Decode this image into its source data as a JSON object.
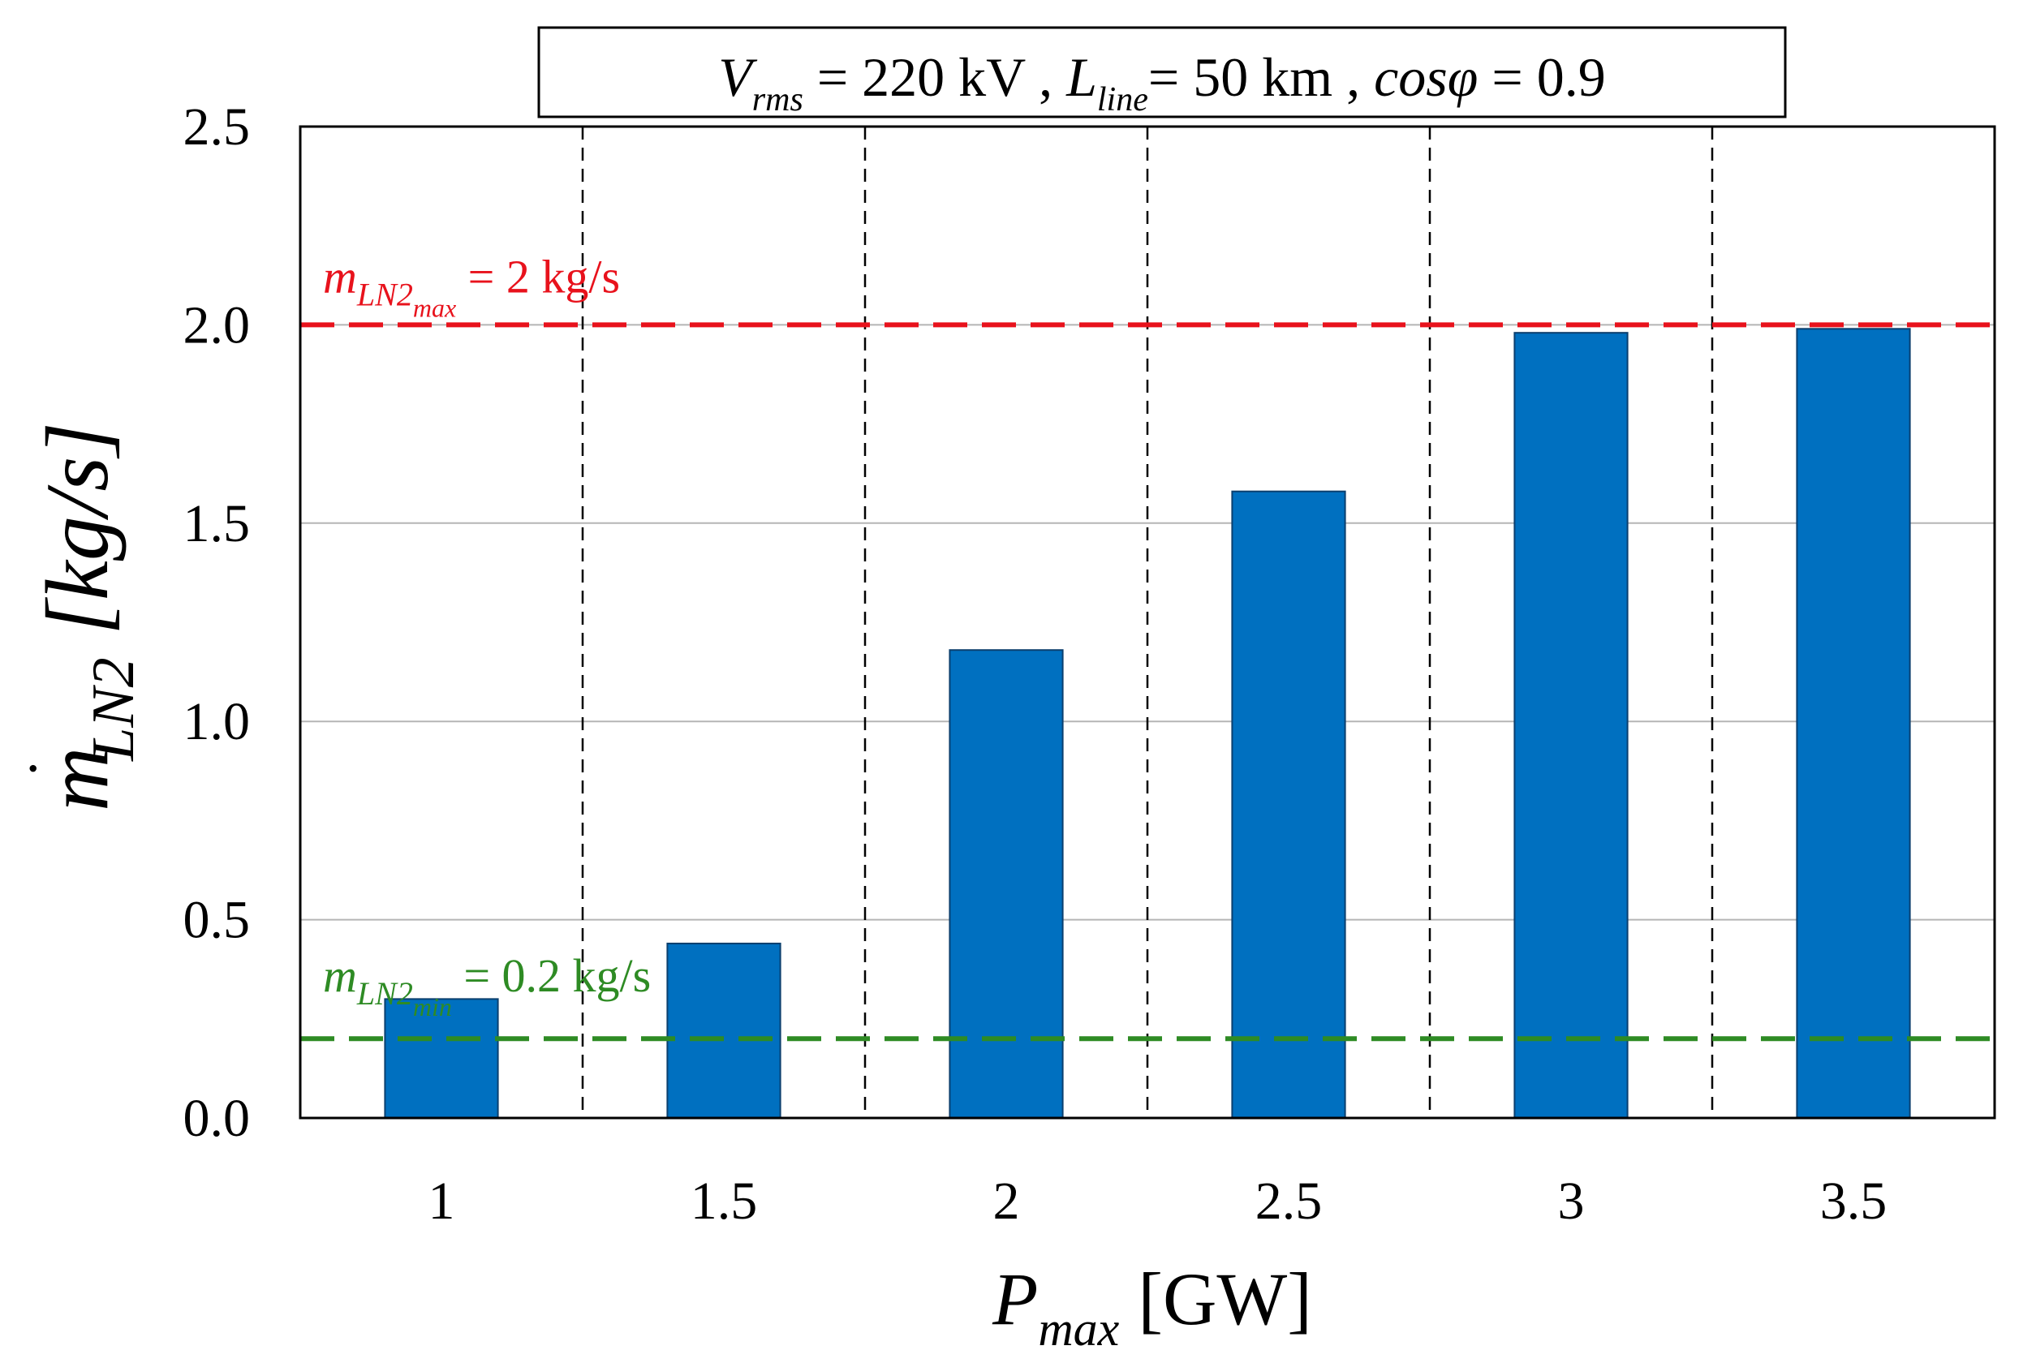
{
  "chart_data": {
    "type": "bar",
    "title": {
      "v_sym": "V",
      "v_sub": "rms",
      "v_val": " = 220 kV",
      "sep1": " ,  ",
      "l_sym": "L",
      "l_sub": "line",
      "l_val": "= 50 km",
      "sep2": " ,  ",
      "cos_sym": "cosφ",
      "cos_val": " = 0.9"
    },
    "xlabel": {
      "sym": "P",
      "sub": "max",
      "unit": " [GW]"
    },
    "ylabel": {
      "sym": "m",
      "dot": "˙",
      "sub": "LN2",
      "unit": " [kg/s]"
    },
    "categories": [
      "1",
      "1.5",
      "2",
      "2.5",
      "3",
      "3.5"
    ],
    "values": [
      0.3,
      0.44,
      1.18,
      1.58,
      1.98,
      1.99
    ],
    "ylim": [
      0,
      2.5
    ],
    "yticks": [
      "0.0",
      "0.5",
      "1.0",
      "1.5",
      "2.0",
      "2.5"
    ],
    "grid": "horizontal",
    "reference_lines": [
      {
        "name": "max",
        "value": 2.0,
        "color": "#e8121c",
        "label_sym": "m",
        "label_sub": "LN2",
        "label_sub2": "max",
        "label_val": " = 2 kg/s"
      },
      {
        "name": "min",
        "value": 0.2,
        "color": "#2e8b24",
        "label_sym": "m",
        "label_sub": "LN2",
        "label_sub2": "min",
        "label_val": " = 0.2 kg/s"
      }
    ],
    "bar_color": "#0070c0"
  }
}
